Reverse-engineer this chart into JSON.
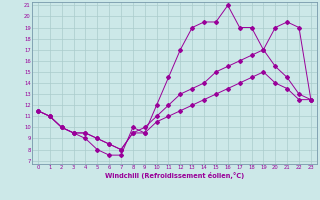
{
  "xlabel": "Windchill (Refroidissement éolien,°C)",
  "bg_color": "#cce8e8",
  "line_color": "#990099",
  "grid_color": "#aacccc",
  "spine_color": "#7799aa",
  "xlim": [
    -0.5,
    23.5
  ],
  "ylim": [
    6.7,
    21.3
  ],
  "xticks": [
    0,
    1,
    2,
    3,
    4,
    5,
    6,
    7,
    8,
    9,
    10,
    11,
    12,
    13,
    14,
    15,
    16,
    17,
    18,
    19,
    20,
    21,
    22,
    23
  ],
  "yticks": [
    7,
    8,
    9,
    10,
    11,
    12,
    13,
    14,
    15,
    16,
    17,
    18,
    19,
    20,
    21
  ],
  "line1_x": [
    0,
    1,
    2,
    3,
    4,
    5,
    6,
    7,
    8,
    9,
    10,
    11,
    12,
    13,
    14,
    15,
    16,
    17,
    18,
    19,
    20,
    21,
    22,
    23
  ],
  "line1_y": [
    11.5,
    11.0,
    10.0,
    9.5,
    9.0,
    8.0,
    7.5,
    7.5,
    10.0,
    9.5,
    12.0,
    14.5,
    17.0,
    19.0,
    19.5,
    19.5,
    21.0,
    19.0,
    19.0,
    17.0,
    19.0,
    19.5,
    19.0,
    12.5
  ],
  "line2_x": [
    0,
    1,
    2,
    3,
    4,
    5,
    6,
    7,
    8,
    9,
    10,
    11,
    12,
    13,
    14,
    15,
    16,
    17,
    18,
    19,
    20,
    21,
    22,
    23
  ],
  "line2_y": [
    11.5,
    11.0,
    10.0,
    9.5,
    9.5,
    9.0,
    8.5,
    8.0,
    9.5,
    10.0,
    11.0,
    12.0,
    13.0,
    13.5,
    14.0,
    15.0,
    15.5,
    16.0,
    16.5,
    17.0,
    15.5,
    14.5,
    13.0,
    12.5
  ],
  "line3_x": [
    0,
    1,
    2,
    3,
    4,
    5,
    6,
    7,
    8,
    9,
    10,
    11,
    12,
    13,
    14,
    15,
    16,
    17,
    18,
    19,
    20,
    21,
    22,
    23
  ],
  "line3_y": [
    11.5,
    11.0,
    10.0,
    9.5,
    9.5,
    9.0,
    8.5,
    8.0,
    9.5,
    9.5,
    10.5,
    11.0,
    11.5,
    12.0,
    12.5,
    13.0,
    13.5,
    14.0,
    14.5,
    15.0,
    14.0,
    13.5,
    12.5,
    12.5
  ],
  "tick_fontsize": 3.8,
  "xlabel_fontsize": 4.8,
  "marker_size": 2.0,
  "linewidth": 0.7
}
